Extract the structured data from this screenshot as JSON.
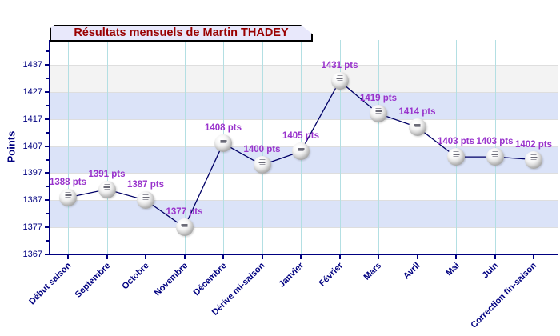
{
  "chart_data": {
    "type": "line",
    "title": "Résultats mensuels de Martin THADEY",
    "ylabel": "Points",
    "xlabel": "",
    "unit": "pts",
    "categories": [
      "Début saison",
      "Septembre",
      "Octobre",
      "Novembre",
      "Décembre",
      "Dérive mi-saison",
      "Janvier",
      "Février",
      "Mars",
      "Avril",
      "Mai",
      "Juin",
      "Correction fin-saison"
    ],
    "values": [
      1388,
      1391,
      1387,
      1377,
      1408,
      1400,
      1405,
      1431,
      1419,
      1414,
      1403,
      1403,
      1402
    ],
    "point_labels": [
      "1388 pts",
      "1391 pts",
      "1387 pts",
      "1377 pts",
      "1408 pts",
      "1400 pts",
      "1405 pts",
      "1431 pts",
      "1419 pts",
      "1414 pts",
      "1403 pts",
      "1403 pts",
      "1402 pts"
    ],
    "yticks": [
      1367,
      1377,
      1387,
      1397,
      1407,
      1417,
      1427,
      1437
    ],
    "ylim": [
      1367,
      1446
    ],
    "minor_tick_step": 5,
    "legend": false,
    "marker": "petanque-ball",
    "grid": {
      "vertical_lines": true,
      "horizontal_bands": true
    },
    "blue_bands": [
      [
        1377,
        1387
      ],
      [
        1397,
        1407
      ],
      [
        1417,
        1427
      ]
    ],
    "gray_bands": [
      [
        1427,
        1437
      ]
    ]
  },
  "colors": {
    "background": "#ffffff",
    "title_text": "#990000",
    "title_bg": "#e8e8fb",
    "title_border": "#000000",
    "axis": "#000080",
    "tick_label": "#000080",
    "category_label": "#000080",
    "point_label": "#9933cc",
    "line": "#000066",
    "band_blue": "#dbe3f8",
    "band_gray": "#f3f3f3",
    "vgrid": "#b3dfe3",
    "hgrid": "#dedede"
  }
}
